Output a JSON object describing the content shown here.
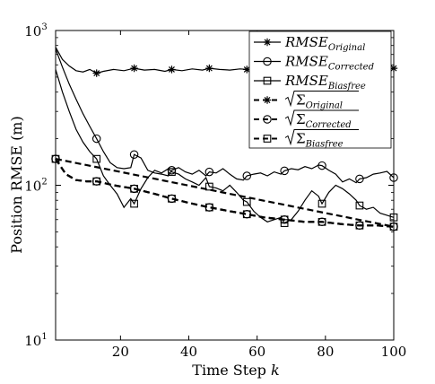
{
  "chart_data": {
    "type": "line",
    "title": "",
    "xlabel": "Time Step",
    "xlabel_var": "k",
    "ylabel": "Position RMSE (m)",
    "yscale": "log",
    "xlim": [
      1,
      100
    ],
    "ylim": [
      10,
      1000
    ],
    "x_ticks": [
      20,
      40,
      60,
      80,
      100
    ],
    "x_tick_labels": [
      "20",
      "40",
      "60",
      "80",
      "100"
    ],
    "y_ticks": [
      10,
      100,
      1000
    ],
    "y_tick_labels": [
      {
        "base": "10",
        "exp": "1"
      },
      {
        "base": "10",
        "exp": "2"
      },
      {
        "base": "10",
        "exp": "3"
      }
    ],
    "grid": false,
    "legend_position": "top-right",
    "series": [
      {
        "name_main": "RMSE",
        "name_sub": "Original",
        "sqrt": false,
        "linestyle": "solid",
        "marker": "asterisk",
        "marker_x": [
          13,
          24,
          35,
          46,
          57,
          68,
          79,
          90,
          100
        ],
        "x": [
          1,
          3,
          5,
          7,
          9,
          11,
          13,
          15,
          18,
          21,
          24,
          27,
          30,
          33,
          35,
          38,
          41,
          44,
          46,
          49,
          52,
          55,
          57,
          60,
          63,
          66,
          68,
          71,
          74,
          77,
          79,
          82,
          85,
          88,
          90,
          93,
          96,
          100
        ],
        "y": [
          780,
          650,
          590,
          550,
          540,
          560,
          530,
          545,
          560,
          550,
          570,
          555,
          560,
          545,
          560,
          550,
          565,
          555,
          570,
          560,
          555,
          565,
          560,
          555,
          560,
          570,
          565,
          560,
          555,
          565,
          560,
          570,
          555,
          560,
          565,
          560,
          555,
          570
        ]
      },
      {
        "name_main": "RMSE",
        "name_sub": "Corrected",
        "sqrt": false,
        "linestyle": "solid",
        "marker": "circle",
        "marker_x": [
          13,
          24,
          35,
          46,
          57,
          68,
          79,
          90,
          100
        ],
        "x": [
          1,
          3,
          5,
          7,
          9,
          11,
          13,
          15,
          17,
          19,
          21,
          23,
          24,
          26,
          28,
          30,
          32,
          34,
          35,
          37,
          39,
          41,
          43,
          45,
          46,
          48,
          50,
          52,
          54,
          56,
          57,
          59,
          61,
          63,
          65,
          67,
          68,
          70,
          72,
          74,
          76,
          78,
          79,
          81,
          83,
          85,
          87,
          89,
          90,
          92,
          94,
          96,
          98,
          100
        ],
        "y": [
          760,
          580,
          450,
          360,
          290,
          240,
          200,
          165,
          140,
          130,
          128,
          130,
          158,
          150,
          125,
          120,
          118,
          115,
          125,
          130,
          122,
          118,
          125,
          115,
          122,
          120,
          128,
          118,
          110,
          108,
          115,
          118,
          120,
          115,
          122,
          118,
          124,
          128,
          126,
          132,
          128,
          135,
          134,
          125,
          118,
          105,
          110,
          104,
          110,
          112,
          118,
          120,
          123,
          112
        ]
      },
      {
        "name_main": "RMSE",
        "name_sub": "Biasfree",
        "sqrt": false,
        "linestyle": "solid",
        "marker": "square",
        "marker_x": [
          13,
          24,
          35,
          46,
          57,
          68,
          79,
          90,
          100
        ],
        "x": [
          1,
          3,
          5,
          7,
          9,
          11,
          13,
          15,
          17,
          19,
          21,
          23,
          24,
          26,
          28,
          30,
          32,
          34,
          35,
          37,
          39,
          41,
          43,
          45,
          46,
          48,
          50,
          52,
          54,
          56,
          57,
          59,
          61,
          63,
          65,
          67,
          68,
          70,
          72,
          74,
          76,
          78,
          79,
          81,
          83,
          85,
          87,
          89,
          90,
          92,
          94,
          96,
          98,
          100
        ],
        "y": [
          560,
          400,
          300,
          230,
          190,
          165,
          148,
          115,
          100,
          88,
          72,
          82,
          76,
          95,
          112,
          125,
          120,
          128,
          122,
          118,
          110,
          105,
          100,
          112,
          98,
          96,
          92,
          100,
          90,
          80,
          78,
          68,
          62,
          58,
          60,
          62,
          57,
          60,
          68,
          80,
          92,
          85,
          76,
          90,
          100,
          95,
          88,
          80,
          74,
          70,
          72,
          66,
          64,
          62
        ]
      },
      {
        "name_main": "Σ",
        "name_sub": "Original",
        "sqrt": true,
        "linestyle": "dashed",
        "marker": "asterisk",
        "marker_x": [],
        "x": [
          1,
          100
        ],
        "y": [
          148,
          54
        ]
      },
      {
        "name_main": "Σ",
        "name_sub": "Corrected",
        "sqrt": true,
        "linestyle": "dashed",
        "marker": "circle",
        "marker_x": [
          1,
          13,
          24,
          35,
          46,
          57,
          68,
          79,
          90,
          100
        ],
        "x": [
          1,
          4,
          7,
          10,
          13,
          18,
          24,
          30,
          35,
          40,
          46,
          52,
          57,
          62,
          68,
          74,
          79,
          85,
          90,
          95,
          100
        ],
        "y": [
          148,
          118,
          108,
          106,
          106,
          100,
          95,
          88,
          82,
          77,
          72,
          68,
          65,
          62,
          60,
          58,
          58,
          56,
          55,
          55,
          54
        ]
      },
      {
        "name_main": "Σ",
        "name_sub": "Biasfree",
        "sqrt": true,
        "linestyle": "dashed",
        "marker": "square",
        "marker_x": [
          1,
          13,
          24,
          35,
          46,
          57,
          68,
          79,
          90,
          100
        ],
        "x": [
          1,
          4,
          7,
          10,
          13,
          18,
          24,
          30,
          35,
          40,
          46,
          52,
          57,
          62,
          68,
          74,
          79,
          85,
          90,
          95,
          100
        ],
        "y": [
          148,
          118,
          108,
          106,
          106,
          100,
          95,
          88,
          82,
          77,
          72,
          68,
          65,
          62,
          60,
          58,
          58,
          56,
          55,
          55,
          54
        ]
      }
    ]
  }
}
